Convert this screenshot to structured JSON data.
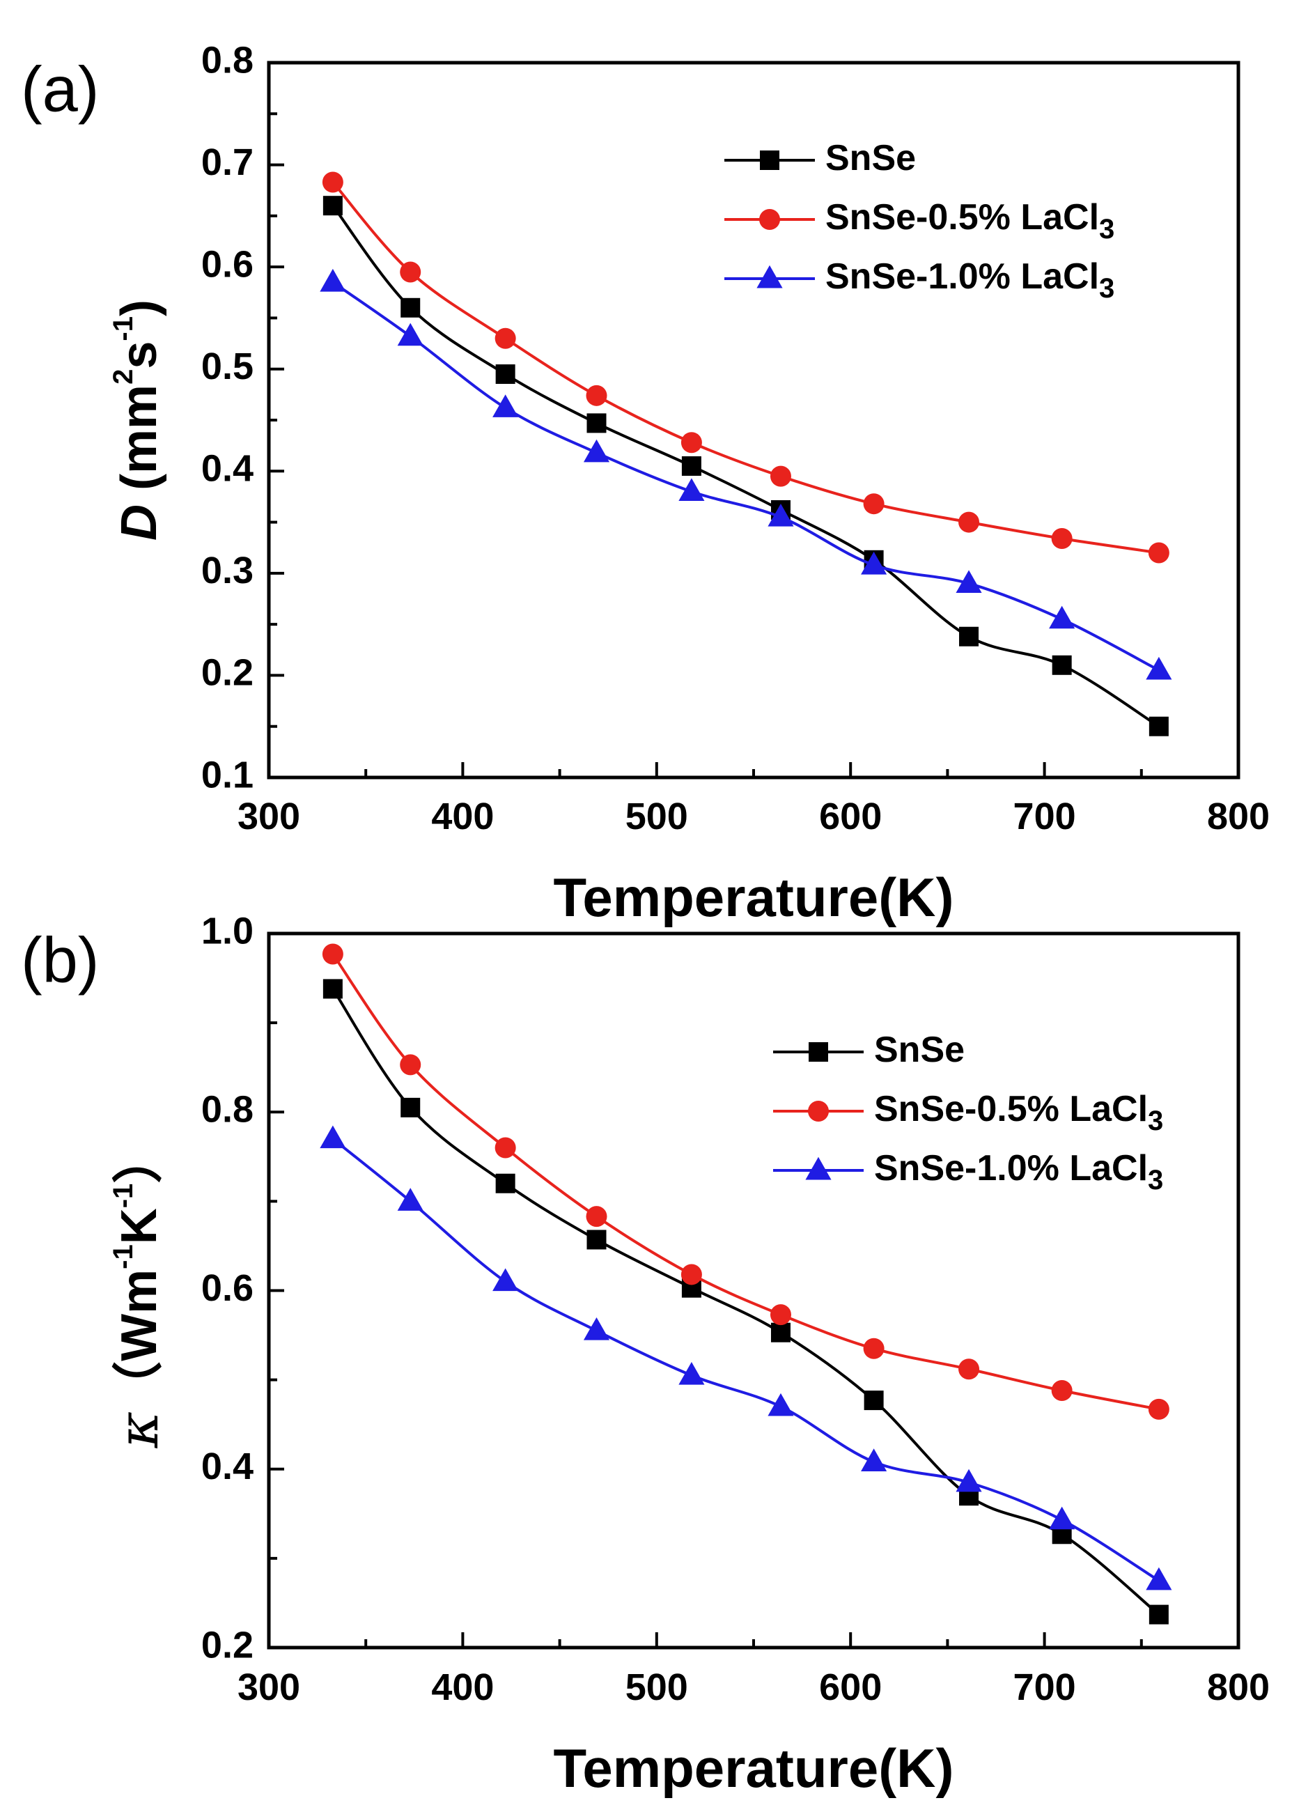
{
  "chart_data": [
    {
      "type": "line",
      "panel_label": "(a)",
      "xlabel": "Temperature(K)",
      "ylabel": {
        "italic": "D",
        "rest": " (mm",
        "sup1": "2",
        "mid": "s",
        "sup2": "-1",
        "end": ")"
      },
      "xlim": [
        300,
        800
      ],
      "ylim": [
        0.1,
        0.8
      ],
      "xticks": [
        300,
        400,
        500,
        600,
        700,
        800
      ],
      "yticks": [
        0.1,
        0.2,
        0.3,
        0.4,
        0.5,
        0.6,
        0.7,
        0.8
      ],
      "x": [
        333,
        373,
        422,
        469,
        518,
        564,
        612,
        661,
        709,
        759
      ],
      "legend_position": "top-right",
      "series": [
        {
          "name": "SnSe",
          "name_main": "SnSe",
          "name_sub": "",
          "color": "#000000",
          "marker": "square",
          "values": [
            0.66,
            0.56,
            0.495,
            0.447,
            0.405,
            0.362,
            0.313,
            0.238,
            0.21,
            0.15
          ]
        },
        {
          "name": "SnSe-0.5% LaCl3",
          "name_main": "SnSe-0.5% LaCl",
          "name_sub": "3",
          "color": "#e8231d",
          "marker": "circle",
          "values": [
            0.683,
            0.595,
            0.53,
            0.474,
            0.428,
            0.395,
            0.368,
            0.35,
            0.334,
            0.32
          ]
        },
        {
          "name": "SnSe-1.0% LaCl3",
          "name_main": "SnSe-1.0% LaCl",
          "name_sub": "3",
          "color": "#1f1ce3",
          "marker": "triangle",
          "values": [
            0.585,
            0.532,
            0.462,
            0.418,
            0.38,
            0.355,
            0.308,
            0.29,
            0.255,
            0.205
          ]
        }
      ]
    },
    {
      "type": "line",
      "panel_label": "(b)",
      "xlabel": "Temperature(K)",
      "ylabel": {
        "symbol": "κ",
        "rest": "（Wm",
        "sup1": "-1",
        "mid": "K",
        "sup2": "-1",
        "end": "）"
      },
      "xlim": [
        300,
        800
      ],
      "ylim": [
        0.2,
        1.0
      ],
      "xticks": [
        300,
        400,
        500,
        600,
        700,
        800
      ],
      "yticks": [
        0.2,
        0.4,
        0.6,
        0.8,
        1.0
      ],
      "x": [
        333,
        373,
        422,
        469,
        518,
        564,
        612,
        661,
        709,
        759
      ],
      "legend_position": "upper-right",
      "series": [
        {
          "name": "SnSe",
          "name_main": "SnSe",
          "name_sub": "",
          "color": "#000000",
          "marker": "square",
          "values": [
            0.938,
            0.805,
            0.72,
            0.657,
            0.603,
            0.553,
            0.477,
            0.37,
            0.327,
            0.237
          ]
        },
        {
          "name": "SnSe-0.5% LaCl3",
          "name_main": "SnSe-0.5% LaCl",
          "name_sub": "3",
          "color": "#e8231d",
          "marker": "circle",
          "values": [
            0.977,
            0.853,
            0.76,
            0.683,
            0.618,
            0.573,
            0.535,
            0.512,
            0.488,
            0.467
          ]
        },
        {
          "name": "SnSe-1.0% LaCl3",
          "name_main": "SnSe-1.0% LaCl",
          "name_sub": "3",
          "color": "#1f1ce3",
          "marker": "triangle",
          "values": [
            0.77,
            0.7,
            0.61,
            0.555,
            0.505,
            0.47,
            0.408,
            0.385,
            0.343,
            0.275
          ]
        }
      ]
    }
  ]
}
